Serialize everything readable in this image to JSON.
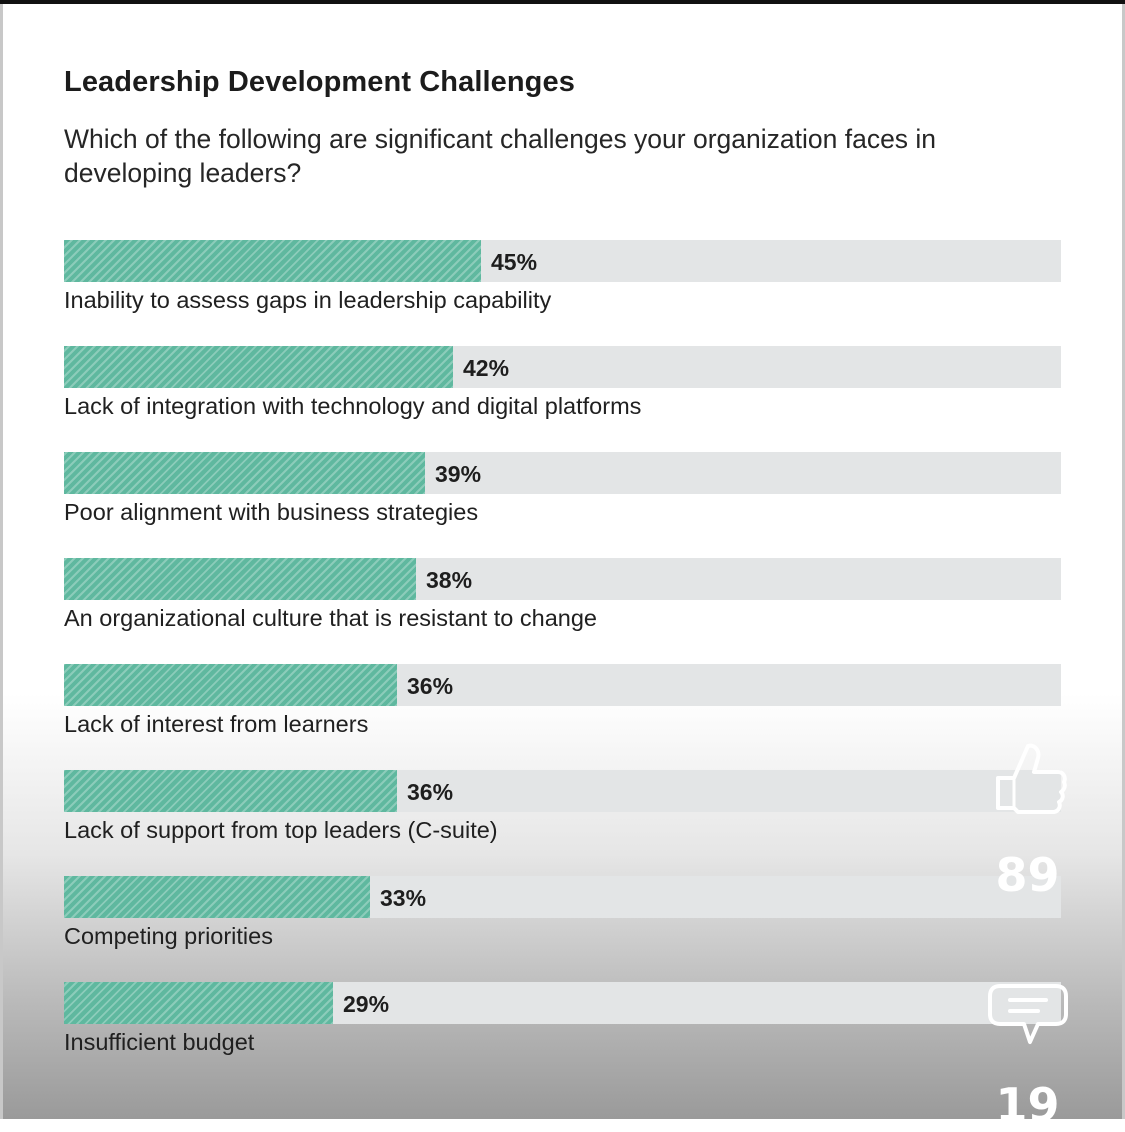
{
  "chart_data": {
    "type": "bar",
    "orientation": "horizontal",
    "title": "Leadership Development Challenges",
    "subtitle": "Which of the following are significant challenges your organization faces in developing leaders?",
    "xlim": [
      0,
      100
    ],
    "value_suffix": "%",
    "categories": [
      "Inability to assess gaps in leadership capability",
      "Lack of integration with technology and digital platforms",
      "Poor alignment with business strategies",
      "An organizational culture that is resistant to change",
      "Lack of interest from learners",
      "Lack of support from top leaders (C-suite)",
      "Competing priorities",
      "Insufficient budget"
    ],
    "values": [
      45,
      42,
      39,
      38,
      36,
      36,
      33,
      29
    ],
    "value_labels": [
      "45%",
      "42%",
      "39%",
      "38%",
      "36%",
      "36%",
      "33%",
      "29%"
    ],
    "bar_color": "#5fb89f",
    "track_color": "#e3e5e6",
    "grid": false,
    "legend": "none"
  },
  "overlay": {
    "like_icon": "thumbs-up-icon",
    "like_count": "89",
    "comment_icon": "comment-bubble-icon",
    "comment_count": "19"
  }
}
